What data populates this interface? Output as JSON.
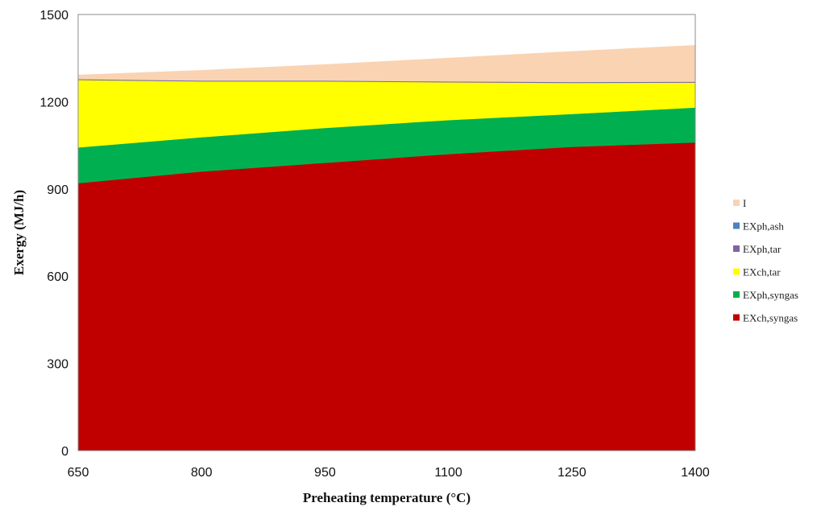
{
  "chart_data": {
    "type": "area",
    "stacked": true,
    "title": "",
    "xlabel": "Preheating temperature (°C)",
    "ylabel": "Exergy (MJ/h)",
    "xlim": [
      650,
      1400
    ],
    "ylim": [
      0,
      1500
    ],
    "x_ticks": [
      650,
      800,
      950,
      1100,
      1250,
      1400
    ],
    "y_ticks": [
      0,
      300,
      600,
      900,
      1200,
      1500
    ],
    "grid": false,
    "legend_position": "right",
    "x": [
      650,
      800,
      950,
      1100,
      1250,
      1400
    ],
    "series": [
      {
        "name": "EXch,syngas",
        "color": "#C00000",
        "values": [
          920,
          960,
          990,
          1020,
          1045,
          1060
        ]
      },
      {
        "name": "EXph,syngas",
        "color": "#00B050",
        "values": [
          123,
          118,
          120,
          117,
          113,
          120
        ]
      },
      {
        "name": "EXch,tar",
        "color": "#FFFF00",
        "values": [
          232,
          192,
          160,
          130,
          107,
          86
        ]
      },
      {
        "name": "EXph,tar",
        "color": "#8064A2",
        "values": [
          2,
          2,
          2,
          2,
          2,
          2
        ]
      },
      {
        "name": "EXph,ash",
        "color": "#4F81BD",
        "values": [
          1,
          1,
          1,
          1,
          1,
          1
        ]
      },
      {
        "name": "I",
        "color": "#FAD3B3",
        "values": [
          14,
          35,
          55,
          80,
          105,
          125
        ]
      }
    ]
  }
}
